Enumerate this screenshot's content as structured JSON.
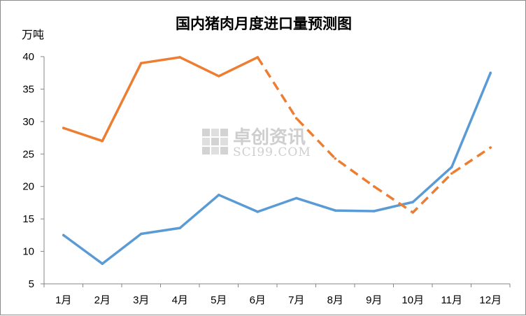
{
  "chart_data": {
    "type": "line",
    "title": "国内猪肉月度进口量预测图",
    "ylabel": "万吨",
    "xlabel": "",
    "ylim": [
      5,
      40
    ],
    "yticks": [
      5,
      10,
      15,
      20,
      25,
      30,
      35,
      40
    ],
    "categories": [
      "1月",
      "2月",
      "3月",
      "4月",
      "5月",
      "6月",
      "7月",
      "8月",
      "9月",
      "10月",
      "11月",
      "12月"
    ],
    "grid": false,
    "legend": "none",
    "series": [
      {
        "color": "#5b9bd5",
        "style": "solid",
        "values": [
          12.5,
          8.1,
          12.7,
          13.6,
          18.7,
          16.1,
          18.2,
          16.3,
          16.2,
          17.6,
          23.0,
          37.5
        ]
      },
      {
        "color": "#ed7d31",
        "style": "solid-then-dashed",
        "dashed_from_index": 5,
        "values": [
          29.0,
          27.0,
          39.0,
          39.9,
          37.0,
          39.9,
          30.5,
          24.3,
          20.0,
          16.0,
          22.0,
          26.0
        ]
      }
    ],
    "watermark": {
      "text": "卓创资讯",
      "subtext": "SCI99.COM"
    }
  }
}
